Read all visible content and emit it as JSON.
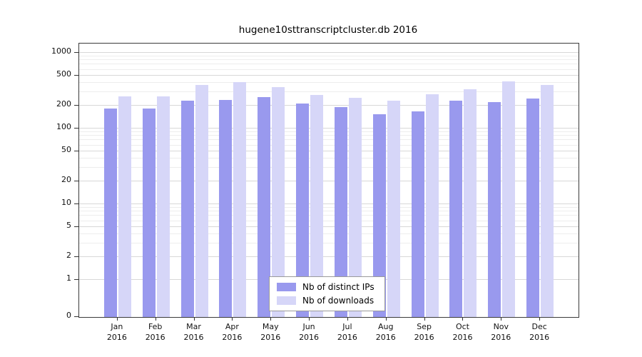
{
  "chart_data": {
    "type": "bar",
    "title": "hugene10sttranscriptcluster.db 2016",
    "xlabel": "",
    "ylabel": "",
    "yscale": "log",
    "grid": true,
    "legend_position": "bottom-center",
    "ylim": [
      0,
      1000
    ],
    "yticks": [
      0,
      1,
      2,
      5,
      10,
      20,
      50,
      100,
      200,
      500,
      1000
    ],
    "year_label": "2016",
    "categories": [
      "Jan",
      "Feb",
      "Mar",
      "Apr",
      "May",
      "Jun",
      "Jul",
      "Aug",
      "Sep",
      "Oct",
      "Nov",
      "Dec"
    ],
    "series": [
      {
        "name": "Nb of distinct IPs",
        "color": "#9999ee",
        "values": [
          185,
          185,
          235,
          240,
          260,
          215,
          190,
          155,
          170,
          235,
          225,
          250
        ]
      },
      {
        "name": "Nb of downloads",
        "color": "#d6d6f8",
        "values": [
          265,
          265,
          380,
          410,
          350,
          280,
          255,
          235,
          285,
          330,
          420,
          375
        ]
      }
    ]
  }
}
